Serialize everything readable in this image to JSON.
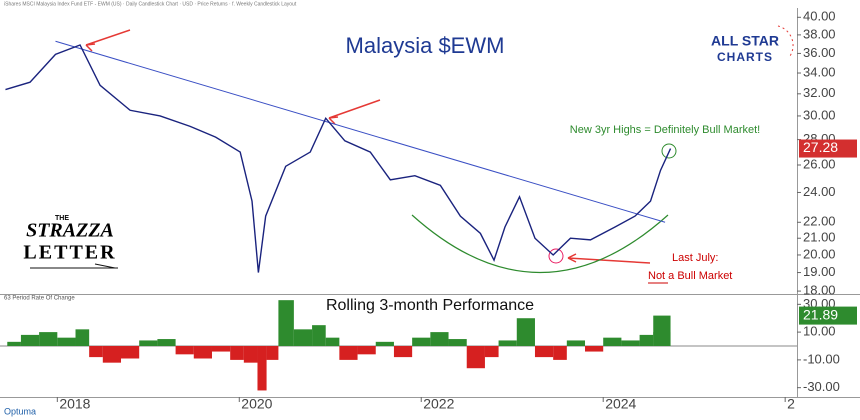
{
  "header": "iShares MSCI Malaysia Index Fund ETF - EWM (US) · Daily Candlestick Chart · USD · Price Returns · f. Weekly Candlestick Layout",
  "footer": "Optuma",
  "brand": {
    "allstar": [
      "ALL STAR",
      "CHARTS"
    ],
    "strazza": [
      "THE",
      "STRAZZA",
      "LETTER"
    ]
  },
  "chart_data": [
    {
      "type": "line",
      "title": "Malaysia $EWM",
      "annotations": [
        "New 3yr Highs = Definitely Bull Market!",
        "Last July:",
        "Not a Bull Market"
      ],
      "log_scale": true,
      "color": "#1a237e",
      "xlim": [
        2017.37,
        2026.13
      ],
      "ylim": [
        17.9,
        41.1
      ],
      "yticks": [
        {
          "value": 18,
          "label": "18.00"
        },
        {
          "value": 19,
          "label": "19.00"
        },
        {
          "value": 20,
          "label": "20.00"
        },
        {
          "value": 21,
          "label": "21.00"
        },
        {
          "value": 22,
          "label": "22.00"
        },
        {
          "value": 24,
          "label": "24.00"
        },
        {
          "value": 26,
          "label": "26.00"
        },
        {
          "value": 28,
          "label": "28.00"
        },
        {
          "value": 30,
          "label": "30.00"
        },
        {
          "value": 32,
          "label": "32.00"
        },
        {
          "value": 34,
          "label": "34.00"
        },
        {
          "value": 36,
          "label": "36.00"
        },
        {
          "value": 38,
          "label": "38.00"
        },
        {
          "value": 40,
          "label": "40.00"
        }
      ],
      "x": [
        2017.43,
        2017.7,
        2017.98,
        2018.25,
        2018.47,
        2018.8,
        2019.13,
        2019.46,
        2019.74,
        2020.01,
        2020.14,
        2020.21,
        2020.29,
        2020.51,
        2020.78,
        2020.95,
        2021.16,
        2021.44,
        2021.66,
        2021.93,
        2022.21,
        2022.43,
        2022.65,
        2022.8,
        2022.92,
        2023.08,
        2023.25,
        2023.45,
        2023.64,
        2023.86,
        2024.13,
        2024.35,
        2024.52,
        2024.63,
        2024.74
      ],
      "values": [
        32.4,
        33.1,
        35.9,
        36.9,
        32.8,
        30.5,
        30.0,
        29.1,
        28.2,
        27.0,
        23.4,
        19.0,
        22.4,
        25.9,
        27.0,
        29.8,
        27.9,
        27.0,
        24.9,
        25.2,
        24.5,
        22.4,
        21.3,
        19.7,
        21.7,
        23.7,
        21.0,
        20.0,
        21.0,
        20.9,
        21.7,
        22.4,
        23.4,
        25.6,
        27.28
      ],
      "trendline": {
        "x": [
          2017.98,
          2024.68
        ],
        "values": [
          37.3,
          22.0
        ],
        "color": "#3a4fc4"
      }
    },
    {
      "type": "bar",
      "title": "Rolling 3-month Performance",
      "label": "63 Period Rate Of Change",
      "positive_color": "#2e8b2e",
      "negative_color": "#d62020",
      "xlim": [
        2017.37,
        2026.13
      ],
      "xticks": [
        2018,
        2020,
        2022,
        2024,
        {
          "value": 2026,
          "label": "2"
        }
      ],
      "ylim": [
        -36,
        36
      ],
      "yticks": [
        {
          "value": 30,
          "label": "30.00"
        },
        {
          "value": 10,
          "label": "10.00"
        },
        {
          "value": -10,
          "label": "-10.00"
        },
        {
          "value": -30,
          "label": "-30.00"
        }
      ],
      "x": [
        2017.45,
        2017.6,
        2017.8,
        2018.0,
        2018.2,
        2018.35,
        2018.5,
        2018.7,
        2018.9,
        2019.1,
        2019.3,
        2019.5,
        2019.7,
        2019.9,
        2020.05,
        2020.2,
        2020.3,
        2020.43,
        2020.6,
        2020.8,
        2020.95,
        2021.1,
        2021.3,
        2021.5,
        2021.7,
        2021.9,
        2022.1,
        2022.3,
        2022.5,
        2022.7,
        2022.85,
        2023.05,
        2023.25,
        2023.45,
        2023.6,
        2023.8,
        2024.0,
        2024.2,
        2024.4,
        2024.55,
        2024.74
      ],
      "values": [
        3,
        8,
        10,
        6,
        12,
        -8,
        -12,
        -9,
        4,
        5,
        -6,
        -9,
        -4,
        -10,
        -12,
        -32,
        -10,
        33,
        12,
        15,
        6,
        -10,
        -6,
        3,
        -8,
        6,
        10,
        5,
        -16,
        -8,
        4,
        20,
        -8,
        -10,
        4,
        -4,
        6,
        4,
        8,
        10,
        21.89
      ]
    }
  ]
}
